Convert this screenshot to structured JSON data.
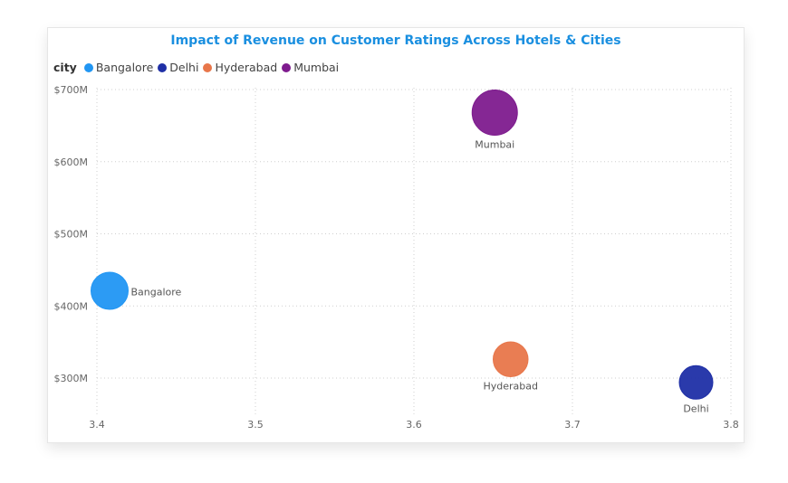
{
  "chart_data": {
    "type": "scatter",
    "title": "Impact of Revenue on Customer Ratings Across Hotels & Cities",
    "legend": {
      "title": "city",
      "placement": "top-left",
      "items": [
        {
          "name": "Bangalore",
          "color": "#2196f3"
        },
        {
          "name": "Delhi",
          "color": "#1f2fa6"
        },
        {
          "name": "Hyderabad",
          "color": "#e8764a"
        },
        {
          "name": "Mumbai",
          "color": "#7e1b8e"
        }
      ]
    },
    "xlim": [
      3.4,
      3.8
    ],
    "ylim": [
      250,
      700
    ],
    "xticks": [
      "3.4",
      "3.5",
      "3.6",
      "3.7",
      "3.8"
    ],
    "yticks": [
      "$300M",
      "$400M",
      "$500M",
      "$600M",
      "$700M"
    ],
    "grid": true,
    "series": [
      {
        "name": "Bangalore",
        "x": 3.408,
        "y": 421,
        "size": 0.82,
        "color": "#2196f3",
        "label": "Bangalore",
        "label_pos": "right"
      },
      {
        "name": "Delhi",
        "x": 3.778,
        "y": 294,
        "size": 0.74,
        "color": "#1f2fa6",
        "label": "Delhi",
        "label_pos": "below"
      },
      {
        "name": "Hyderabad",
        "x": 3.661,
        "y": 326,
        "size": 0.77,
        "color": "#e8764a",
        "label": "Hyderabad",
        "label_pos": "below"
      },
      {
        "name": "Mumbai",
        "x": 3.651,
        "y": 668,
        "size": 1.0,
        "color": "#7e1b8e",
        "label": "Mumbai",
        "label_pos": "below"
      }
    ]
  }
}
